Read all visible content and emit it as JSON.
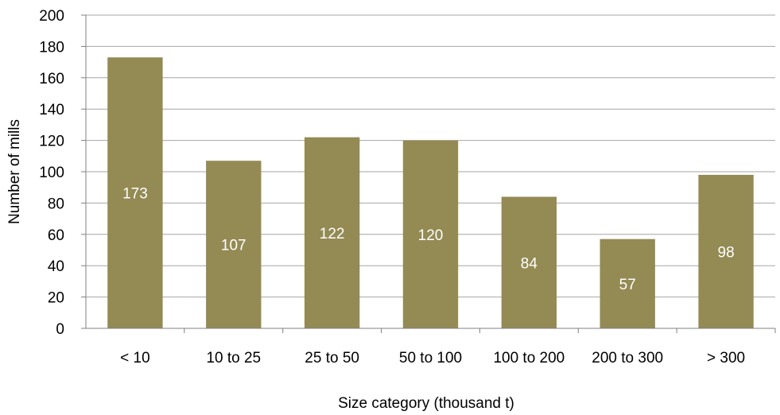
{
  "chart_data": {
    "type": "bar",
    "title": "",
    "xlabel": "Size category  (thousand t)",
    "ylabel": "Number of mills",
    "categories": [
      "< 10",
      "10 to 25",
      "25 to 50",
      "50 to 100",
      "100 to 200",
      "200 to 300",
      "> 300"
    ],
    "values": [
      173,
      107,
      122,
      120,
      84,
      57,
      98
    ],
    "data_labels": [
      "173",
      "107",
      "122",
      "120",
      "84",
      "57",
      "98"
    ],
    "ylim": [
      0,
      200
    ],
    "yticks": [
      0,
      20,
      40,
      60,
      80,
      100,
      120,
      140,
      160,
      180,
      200
    ],
    "grid": true,
    "legend": "none",
    "bar_color": "#948a54",
    "label_color": "#ffffff"
  }
}
